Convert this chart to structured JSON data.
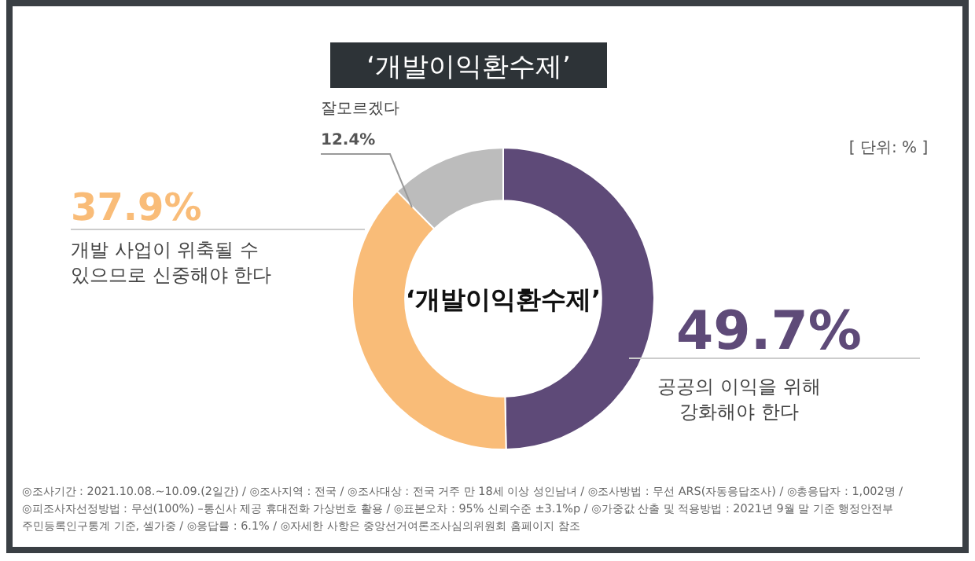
{
  "chart_data": {
    "type": "donut",
    "title": "‘개발이익환수제’",
    "categories": [
      "공공의 이익을 위해\n강화해야 한다",
      "개발 사업이 위축될 수\n있으므로 신중해야 한다",
      "잘모르겠다"
    ],
    "values": [
      49.7,
      37.9,
      12.4
    ],
    "value_labels": [
      "49.7%",
      "37.9%",
      "12.4%"
    ],
    "colors": [
      "#5e4a78",
      "#f9bc78",
      "#bcbcbc"
    ],
    "annotations": [
      "‘개발이익환수제’",
      "[ 단위: % ]",
      "◎조사기간 : 2021.10.08.~10.09.(2일간) / ◎조사지역 : 전국 / ◎조사대상 : 전국 거주 만 18세 이상 성인남녀 / ◎조사방법 : 무선 ARS(자동응답조사) / ◎총응답자 : 1,002명 /",
      "◎피조사자선정방법 : 무선(100%) –통신사 제공 휴대전화 가상번호 활용 / ◎표본오차 : 95% 신뢰수준 ±3.1%p / ◎가중값 산출 및 적용방법 : 2021년 9월 말 기준 행정안전부",
      "주민등록인구통계 기준, 셀가중 / ◎응답률 : 6.1% / ◎자세한 사항은 중앙선거여론조사심의위원회 홈페이지 참조"
    ]
  }
}
